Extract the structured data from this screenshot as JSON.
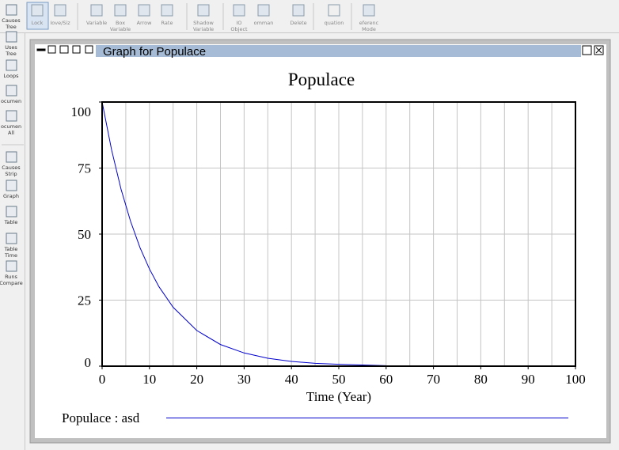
{
  "toolbar": [
    [
      "Lock"
    ],
    [
      "Iove/Siz"
    ],
    [
      "Variable"
    ],
    [
      "Box",
      "Variable"
    ],
    [
      "Arrow"
    ],
    [
      "Rate"
    ],
    [
      "Shadow",
      "Variable"
    ],
    [
      "IO",
      "Object"
    ],
    [
      "omman"
    ],
    [
      "Delete"
    ],
    [
      "quation"
    ],
    [
      "eferenc",
      "Mode"
    ]
  ],
  "sidebar": [
    [
      "Causes",
      "Tree"
    ],
    [
      "Uses",
      "Tree"
    ],
    [
      "Loops"
    ],
    [
      "ocumen"
    ],
    [
      "ocumen",
      "All"
    ],
    [
      "Causes",
      "Strip"
    ],
    [
      "Graph"
    ],
    [
      "Table"
    ],
    [
      "Table",
      "Time"
    ],
    [
      "Runs",
      "Compare"
    ]
  ],
  "window": {
    "title": "Graph for Populace"
  },
  "chart_data": {
    "type": "line",
    "title": "Populace",
    "x_label": "Time (Year)",
    "x": [
      0,
      2,
      4,
      6,
      8,
      10,
      12,
      15,
      20,
      25,
      30,
      35,
      40,
      45,
      50,
      60,
      70,
      80,
      90,
      100
    ],
    "series": [
      {
        "name": "Populace : asd",
        "color": "#0000cc",
        "values": [
          100,
          81.9,
          67.0,
          54.9,
          44.9,
          36.8,
          30.1,
          22.3,
          13.5,
          8.2,
          5.0,
          3.0,
          1.8,
          1.1,
          0.7,
          0.2,
          0.1,
          0,
          0,
          0
        ]
      }
    ],
    "xlim": [
      0,
      100
    ],
    "ylim": [
      0,
      100
    ],
    "xticks": [
      0,
      10,
      20,
      30,
      40,
      50,
      60,
      70,
      80,
      90,
      100
    ],
    "yticks": [
      0,
      25,
      50,
      75,
      100
    ],
    "xgrid": [
      5,
      10,
      15,
      20,
      25,
      30,
      35,
      40,
      45,
      50,
      55,
      60,
      65,
      70,
      75,
      80,
      85,
      90,
      95
    ],
    "grid": true
  }
}
